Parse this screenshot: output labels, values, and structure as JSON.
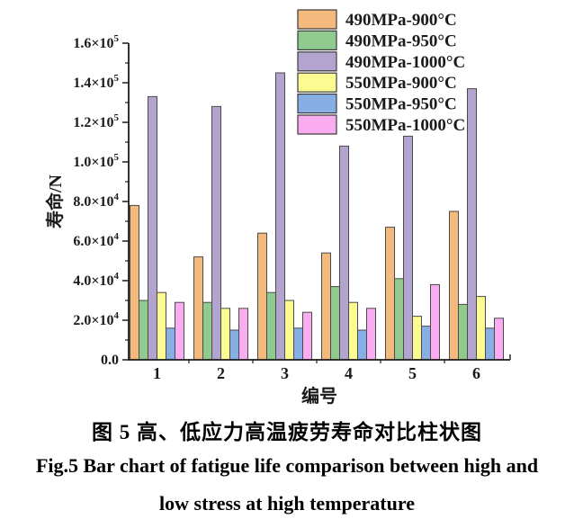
{
  "captions": {
    "zh": "图 5 高、低应力高温疲劳寿命对比柱状图",
    "en_line1": "Fig.5 Bar chart of fatigue life comparison between high and",
    "en_line2": "low stress at high temperature"
  },
  "chart_data": {
    "type": "bar",
    "title": "",
    "xlabel": "编号",
    "ylabel": "寿命/N",
    "categories": [
      "1",
      "2",
      "3",
      "4",
      "5",
      "6"
    ],
    "series": [
      {
        "name": "490MPa-900°C",
        "color": "#F4B97C",
        "values": [
          78000,
          52000,
          64000,
          54000,
          67000,
          75000
        ]
      },
      {
        "name": "490MPa-950°C",
        "color": "#90CA8E",
        "values": [
          30000,
          29000,
          34000,
          37000,
          41000,
          28000
        ]
      },
      {
        "name": "490MPa-1000°C",
        "color": "#B2A4CE",
        "values": [
          133000,
          128000,
          145000,
          108000,
          113000,
          137000
        ]
      },
      {
        "name": "550MPa-900°C",
        "color": "#FBFB92",
        "values": [
          34000,
          26000,
          30000,
          29000,
          22000,
          32000
        ]
      },
      {
        "name": "550MPa-950°C",
        "color": "#87AEE5",
        "values": [
          16000,
          15000,
          16000,
          15000,
          17000,
          16000
        ]
      },
      {
        "name": "550MPa-1000°C",
        "color": "#F9ACF0",
        "values": [
          29000,
          26000,
          24000,
          26000,
          38000,
          21000
        ]
      }
    ],
    "ylim": [
      0,
      160000
    ],
    "ytick_step": 20000,
    "ytick_labels": [
      {
        "text": "0.0",
        "sup": ""
      },
      {
        "text": "2.0×10",
        "sup": "4"
      },
      {
        "text": "4.0×10",
        "sup": "4"
      },
      {
        "text": "6.0×10",
        "sup": "4"
      },
      {
        "text": "8.0×10",
        "sup": "4"
      },
      {
        "text": "1.0×10",
        "sup": "5"
      },
      {
        "text": "1.2×10",
        "sup": "5"
      },
      {
        "text": "1.4×10",
        "sup": "5"
      },
      {
        "text": "1.6×10",
        "sup": "5"
      }
    ],
    "grid": false,
    "legend_position": "top-right",
    "bar_outline": "#4a4a4a",
    "axis_color": "#1a1a1a",
    "text_color": "#1a1a1a"
  }
}
